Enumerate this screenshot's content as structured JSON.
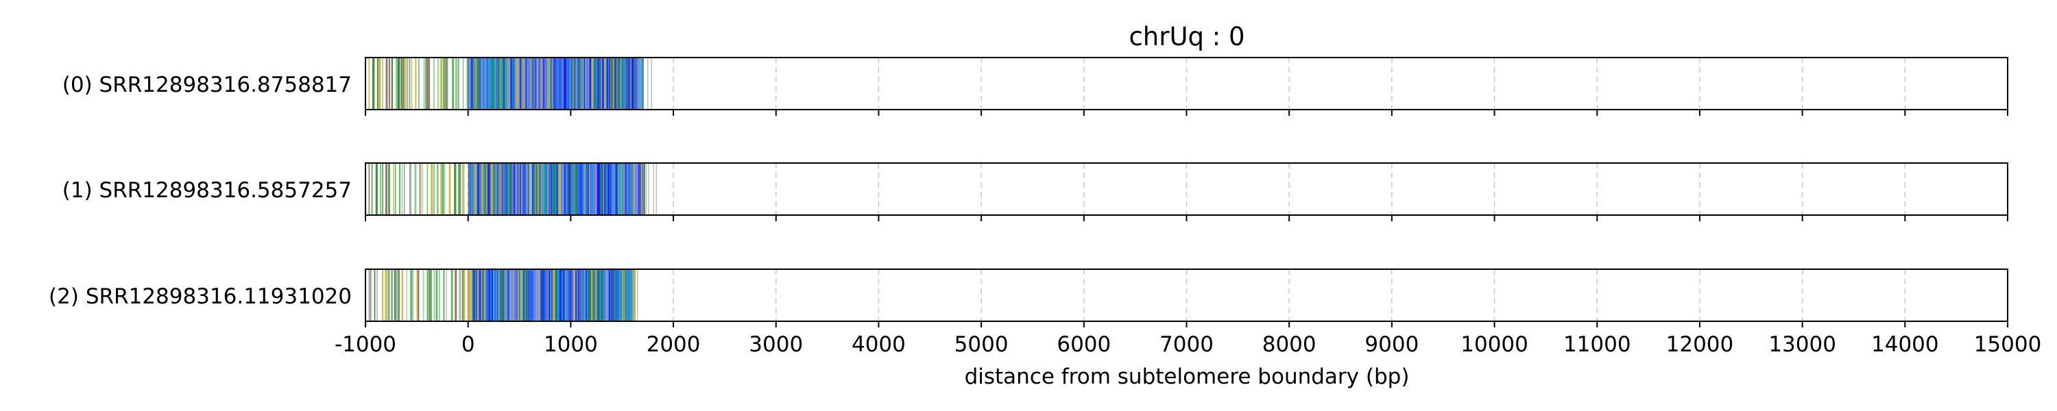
{
  "chart_data": {
    "type": "read-track",
    "title": "chrUq : 0",
    "xlabel": "distance from subtelomere boundary (bp)",
    "xlim": [
      -1000,
      15000
    ],
    "xticks": [
      "-1000",
      "0",
      "1000",
      "2000",
      "3000",
      "4000",
      "5000",
      "6000",
      "7000",
      "8000",
      "9000",
      "10000",
      "11000",
      "12000",
      "13000",
      "14000",
      "15000"
    ],
    "xtick_values": [
      -1000,
      0,
      1000,
      2000,
      3000,
      4000,
      5000,
      6000,
      7000,
      8000,
      9000,
      10000,
      11000,
      12000,
      13000,
      14000,
      15000
    ],
    "grid": "vertical dashed at each x tick",
    "colors": {
      "subtelomere_region": [
        "#2e7d32",
        "#4caf50",
        "#81c784",
        "#a5d6a7",
        "#9e9e9e",
        "#8d6e63",
        "#c9b03a"
      ],
      "telomere_region": [
        "#1a1aff",
        "#3355ff",
        "#5577ee",
        "#3a8fd8",
        "#6a8cff",
        "#00a0c8",
        "#1565c0",
        "#9e9e9e",
        "#c8b33a",
        "#2e7d32"
      ]
    },
    "reads": [
      {
        "label": "(0) SRR12898316.8758817",
        "start": -1000,
        "subtel_end": 0,
        "end": 1800,
        "band_end": 1700
      },
      {
        "label": "(1) SRR12898316.5857257",
        "start": -1000,
        "subtel_end": 0,
        "end": 1850,
        "band_end": 1700
      },
      {
        "label": "(2) SRR12898316.11931020",
        "start": -1000,
        "subtel_end": 0,
        "end": 1680,
        "band_end": 1600
      }
    ]
  }
}
